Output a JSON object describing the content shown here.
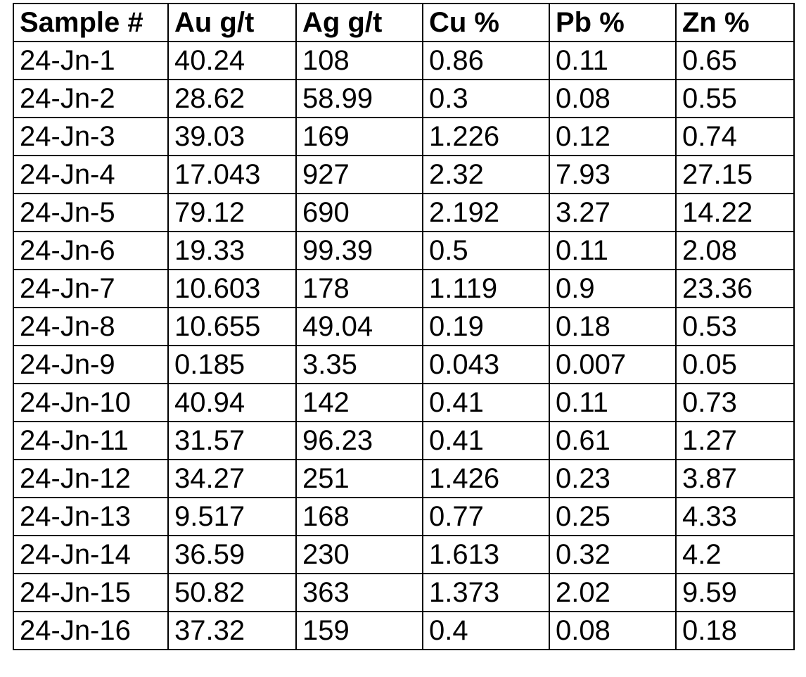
{
  "table": {
    "header": [
      "Sample #",
      "Au g/t",
      "Ag g/t",
      "Cu %",
      "Pb %",
      "Zn %"
    ],
    "rows": [
      [
        "24-Jn-1",
        "40.24",
        "108",
        "0.86",
        "0.11",
        "0.65"
      ],
      [
        "24-Jn-2",
        "28.62",
        "58.99",
        "0.3",
        "0.08",
        "0.55"
      ],
      [
        "24-Jn-3",
        "39.03",
        "169",
        "1.226",
        "0.12",
        "0.74"
      ],
      [
        "24-Jn-4",
        "17.043",
        "927",
        "2.32",
        "7.93",
        "27.15"
      ],
      [
        "24-Jn-5",
        "79.12",
        "690",
        "2.192",
        "3.27",
        "14.22"
      ],
      [
        "24-Jn-6",
        "19.33",
        "99.39",
        "0.5",
        "0.11",
        "2.08"
      ],
      [
        "24-Jn-7",
        "10.603",
        "178",
        "1.119",
        "0.9",
        "23.36"
      ],
      [
        "24-Jn-8",
        "10.655",
        "49.04",
        "0.19",
        "0.18",
        "0.53"
      ],
      [
        "24-Jn-9",
        "0.185",
        "3.35",
        "0.043",
        "0.007",
        "0.05"
      ],
      [
        "24-Jn-10",
        "40.94",
        "142",
        "0.41",
        "0.11",
        "0.73"
      ],
      [
        "24-Jn-11",
        "31.57",
        "96.23",
        "0.41",
        "0.61",
        "1.27"
      ],
      [
        "24-Jn-12",
        "34.27",
        "251",
        "1.426",
        "0.23",
        "3.87"
      ],
      [
        "24-Jn-13",
        "9.517",
        "168",
        "0.77",
        "0.25",
        "4.33"
      ],
      [
        "24-Jn-14",
        "36.59",
        "230",
        "1.613",
        "0.32",
        "4.2"
      ],
      [
        "24-Jn-15",
        "50.82",
        "363",
        "1.373",
        "2.02",
        "9.59"
      ],
      [
        "24-Jn-16",
        "37.32",
        "159",
        "0.4",
        "0.08",
        "0.18"
      ]
    ]
  }
}
